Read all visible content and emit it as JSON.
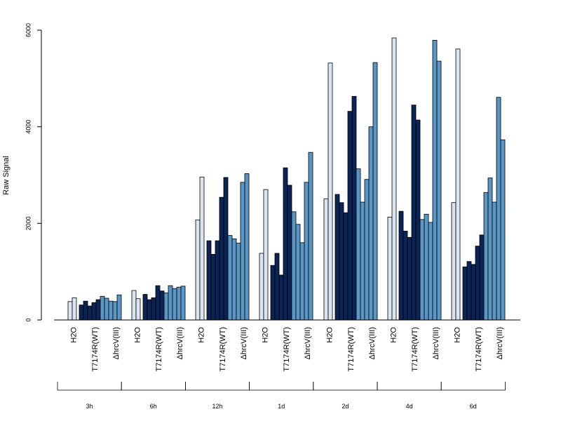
{
  "chart_data": {
    "type": "bar",
    "title": "",
    "xlabel": "",
    "ylabel": "Raw Signal",
    "ylim": [
      0,
      6000
    ],
    "yticks": [
      0,
      2000,
      4000,
      6000
    ],
    "grid": false,
    "legend": "none",
    "condition_labels": [
      "H2O",
      "T7174R(WT)",
      "ΔhrcV(III)"
    ],
    "colors": {
      "H2O": "#dbe5f1",
      "T7174R(WT)": "#0c2356",
      "ΔhrcV(III)": "#5a97c5"
    },
    "categories": [
      "3h",
      "6h",
      "12h",
      "1d",
      "2d",
      "4d",
      "6d"
    ],
    "groups": [
      {
        "time": "3h",
        "bars": {
          "H2O": [
            380,
            460
          ],
          "T7174R(WT)": [
            310,
            390,
            290,
            360,
            420
          ],
          "ΔhrcV(III)": [
            490,
            450,
            390,
            380,
            520
          ]
        }
      },
      {
        "time": "6h",
        "bars": {
          "H2O": [
            610,
            440
          ],
          "T7174R(WT)": [
            530,
            420,
            460,
            710,
            600
          ],
          "ΔhrcV(III)": [
            560,
            710,
            650,
            680,
            700
          ]
        }
      },
      {
        "time": "12h",
        "bars": {
          "H2O": [
            2070,
            2960
          ],
          "T7174R(WT)": [
            1640,
            1360,
            1640,
            2540,
            2950
          ],
          "ΔhrcV(III)": [
            1750,
            1680,
            1590,
            2850,
            3030
          ]
        }
      },
      {
        "time": "1d",
        "bars": {
          "H2O": [
            1380,
            2700
          ],
          "T7174R(WT)": [
            1130,
            1380,
            930,
            3150,
            2790
          ],
          "ΔhrcV(III)": [
            2240,
            1980,
            1600,
            2850,
            3470
          ]
        }
      },
      {
        "time": "2d",
        "bars": {
          "H2O": [
            2510,
            5320
          ],
          "T7174R(WT)": [
            2600,
            2430,
            2220,
            4320,
            4630
          ],
          "ΔhrcV(III)": [
            3130,
            2440,
            2910,
            4000,
            5330
          ]
        }
      },
      {
        "time": "4d",
        "bars": {
          "H2O": [
            2130,
            5840
          ],
          "T7174R(WT)": [
            2250,
            1840,
            1710,
            4450,
            4140
          ],
          "ΔhrcV(III)": [
            2080,
            2190,
            2020,
            5790,
            5360
          ]
        }
      },
      {
        "time": "6d",
        "bars": {
          "H2O": [
            2430,
            5610
          ],
          "T7174R(WT)": [
            1100,
            1210,
            1150,
            1530,
            1760
          ],
          "ΔhrcV(III)": [
            2640,
            2940,
            2440,
            4610,
            3730
          ]
        }
      }
    ]
  }
}
